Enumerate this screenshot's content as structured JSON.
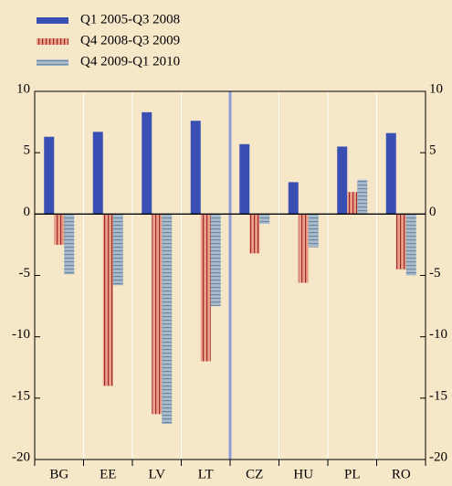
{
  "chart_data": {
    "type": "bar",
    "categories": [
      "BG",
      "EE",
      "LV",
      "LT",
      "CZ",
      "HU",
      "PL",
      "RO"
    ],
    "series": [
      {
        "name": "Q1 2005-Q3 2008",
        "color": "#3a4fb3",
        "values": [
          6.3,
          6.7,
          8.3,
          7.6,
          5.7,
          2.6,
          5.5,
          6.6
        ]
      },
      {
        "name": "Q4 2008-Q3 2009",
        "color": "#e9a088",
        "values": [
          -2.5,
          -14.0,
          -16.3,
          -12.0,
          -3.2,
          -5.6,
          1.8,
          -4.5
        ]
      },
      {
        "name": "Q4 2009-Q1 2010",
        "color": "#a9bccb",
        "values": [
          -4.9,
          -5.8,
          -17.1,
          -7.5,
          -0.8,
          -2.7,
          2.8,
          -5.0
        ]
      }
    ],
    "ylim": [
      -20,
      10
    ],
    "yticks": [
      -20,
      -15,
      -10,
      -5,
      0,
      5,
      10
    ],
    "y2lim": [
      -20,
      10
    ],
    "y2ticks": [
      -20,
      -15,
      -10,
      -5,
      0,
      5,
      10
    ],
    "legend": "top-left"
  }
}
